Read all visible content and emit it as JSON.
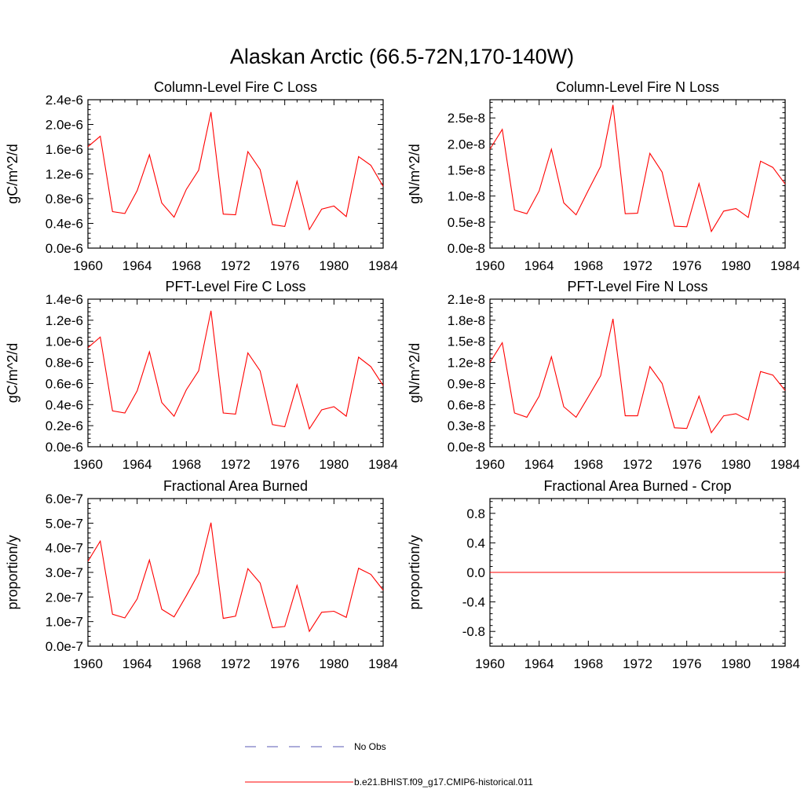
{
  "figure": {
    "title": "Alaskan Arctic (66.5-72N,170-140W)"
  },
  "legend": {
    "entries": [
      {
        "label": "No Obs",
        "color": "#5a5ab4",
        "dash": true
      },
      {
        "label": "b.e21.BHIST.f09_g17.CMIP6-historical.011",
        "color": "#ff0000",
        "dash": false
      }
    ]
  },
  "chart_data": [
    {
      "type": "line",
      "title": "Column-Level Fire C Loss",
      "ylabel": "gC/m^2/d",
      "xlim": [
        1960,
        1984
      ],
      "ylim": [
        0,
        2.4e-06
      ],
      "xticks": [
        "1960",
        "1964",
        "1968",
        "1972",
        "1976",
        "1980",
        "1984"
      ],
      "yticks": [
        "0.0e-6",
        "0.4e-6",
        "0.8e-6",
        "1.2e-6",
        "1.6e-6",
        "2.0e-6",
        "2.4e-6"
      ],
      "series": [
        {
          "name": "b.e21.BHIST.f09_g17.CMIP6-historical.011",
          "color": "#ff0000",
          "x": [
            1960,
            1961,
            1962,
            1963,
            1964,
            1965,
            1966,
            1967,
            1968,
            1969,
            1970,
            1971,
            1972,
            1973,
            1974,
            1975,
            1976,
            1977,
            1978,
            1979,
            1980,
            1981,
            1982,
            1983,
            1984
          ],
          "y": [
            1.64e-06,
            1.81e-06,
            5.9e-07,
            5.6e-07,
            9.3e-07,
            1.51e-06,
            7.3e-07,
            5e-07,
            9.5e-07,
            1.26e-06,
            2.2e-06,
            5.5e-07,
            5.4e-07,
            1.56e-06,
            1.27e-06,
            3.8e-07,
            3.5e-07,
            1.08e-06,
            3e-07,
            6.3e-07,
            6.8e-07,
            5.1e-07,
            1.48e-06,
            1.34e-06,
            1e-06
          ]
        }
      ]
    },
    {
      "type": "line",
      "title": "Column-Level Fire N Loss",
      "ylabel": "gN/m^2/d",
      "xlim": [
        1960,
        1984
      ],
      "ylim": [
        0,
        2.85e-08
      ],
      "xticks": [
        "1960",
        "1964",
        "1968",
        "1972",
        "1976",
        "1980",
        "1984"
      ],
      "yticks": [
        "0.0e-8",
        "0.5e-8",
        "1.0e-8",
        "1.5e-8",
        "2.0e-8",
        "2.5e-8"
      ],
      "series": [
        {
          "name": "b.e21.BHIST.f09_g17.CMIP6-historical.011",
          "color": "#ff0000",
          "x": [
            1960,
            1961,
            1962,
            1963,
            1964,
            1965,
            1966,
            1967,
            1968,
            1969,
            1970,
            1971,
            1972,
            1973,
            1974,
            1975,
            1976,
            1977,
            1978,
            1979,
            1980,
            1981,
            1982,
            1983,
            1984
          ],
          "y": [
            1.9e-08,
            2.28e-08,
            7.3e-09,
            6.6e-09,
            1.1e-08,
            1.9e-08,
            8.7e-09,
            6.4e-09,
            1.11e-08,
            1.57e-08,
            2.75e-08,
            6.6e-09,
            6.7e-09,
            1.82e-08,
            1.46e-08,
            4.2e-09,
            4.1e-09,
            1.24e-08,
            3.2e-09,
            7.1e-09,
            7.6e-09,
            5.9e-09,
            1.67e-08,
            1.55e-08,
            1.23e-08
          ]
        }
      ]
    },
    {
      "type": "line",
      "title": "PFT-Level Fire C Loss",
      "ylabel": "gC/m^2/d",
      "xlim": [
        1960,
        1984
      ],
      "ylim": [
        0,
        1.4e-06
      ],
      "xticks": [
        "1960",
        "1964",
        "1968",
        "1972",
        "1976",
        "1980",
        "1984"
      ],
      "yticks": [
        "0.0e-6",
        "0.2e-6",
        "0.4e-6",
        "0.6e-6",
        "0.8e-6",
        "1.0e-6",
        "1.2e-6",
        "1.4e-6"
      ],
      "series": [
        {
          "name": "b.e21.BHIST.f09_g17.CMIP6-historical.011",
          "color": "#ff0000",
          "x": [
            1960,
            1961,
            1962,
            1963,
            1964,
            1965,
            1966,
            1967,
            1968,
            1969,
            1970,
            1971,
            1972,
            1973,
            1974,
            1975,
            1976,
            1977,
            1978,
            1979,
            1980,
            1981,
            1982,
            1983,
            1984
          ],
          "y": [
            9.4e-07,
            1.04e-06,
            3.4e-07,
            3.2e-07,
            5.3e-07,
            9e-07,
            4.2e-07,
            2.9e-07,
            5.4e-07,
            7.2e-07,
            1.29e-06,
            3.2e-07,
            3.1e-07,
            8.9e-07,
            7.2e-07,
            2.1e-07,
            1.9e-07,
            5.9e-07,
            1.7e-07,
            3.5e-07,
            3.8e-07,
            2.9e-07,
            8.5e-07,
            7.6e-07,
            5.8e-07
          ]
        }
      ]
    },
    {
      "type": "line",
      "title": "PFT-Level Fire N Loss",
      "ylabel": "gN/m^2/d",
      "xlim": [
        1960,
        1984
      ],
      "ylim": [
        0,
        2.1e-08
      ],
      "xticks": [
        "1960",
        "1964",
        "1968",
        "1972",
        "1976",
        "1980",
        "1984"
      ],
      "yticks": [
        "0.0e-8",
        "0.3e-8",
        "0.6e-8",
        "0.9e-8",
        "1.2e-8",
        "1.5e-8",
        "1.8e-8",
        "2.1e-8"
      ],
      "series": [
        {
          "name": "b.e21.BHIST.f09_g17.CMIP6-historical.011",
          "color": "#ff0000",
          "x": [
            1960,
            1961,
            1962,
            1963,
            1964,
            1965,
            1966,
            1967,
            1968,
            1969,
            1970,
            1971,
            1972,
            1973,
            1974,
            1975,
            1976,
            1977,
            1978,
            1979,
            1980,
            1981,
            1982,
            1983,
            1984
          ],
          "y": [
            1.2e-08,
            1.48e-08,
            4.8e-09,
            4.2e-09,
            7.2e-09,
            1.28e-08,
            5.7e-09,
            4.2e-09,
            7.1e-09,
            1.01e-08,
            1.82e-08,
            4.4e-09,
            4.4e-09,
            1.14e-08,
            9e-09,
            2.7e-09,
            2.6e-09,
            7.2e-09,
            2e-09,
            4.4e-09,
            4.7e-09,
            3.8e-09,
            1.07e-08,
            1.02e-08,
            8e-09
          ]
        }
      ]
    },
    {
      "type": "line",
      "title": "Fractional Area Burned",
      "ylabel": "proportion/y",
      "xlim": [
        1960,
        1984
      ],
      "ylim": [
        0,
        6e-07
      ],
      "xticks": [
        "1960",
        "1964",
        "1968",
        "1972",
        "1976",
        "1980",
        "1984"
      ],
      "yticks": [
        "0.0e-7",
        "1.0e-7",
        "2.0e-7",
        "3.0e-7",
        "4.0e-7",
        "5.0e-7",
        "6.0e-7"
      ],
      "series": [
        {
          "name": "b.e21.BHIST.f09_g17.CMIP6-historical.011",
          "color": "#ff0000",
          "x": [
            1960,
            1961,
            1962,
            1963,
            1964,
            1965,
            1966,
            1967,
            1968,
            1969,
            1970,
            1971,
            1972,
            1973,
            1974,
            1975,
            1976,
            1977,
            1978,
            1979,
            1980,
            1981,
            1982,
            1983,
            1984
          ],
          "y": [
            3.45e-07,
            4.27e-07,
            1.3e-07,
            1.15e-07,
            1.92e-07,
            3.5e-07,
            1.5e-07,
            1.19e-07,
            2.05e-07,
            2.96e-07,
            5.02e-07,
            1.13e-07,
            1.22e-07,
            3.15e-07,
            2.57e-07,
            7.5e-08,
            8e-08,
            2.47e-07,
            6e-08,
            1.38e-07,
            1.42e-07,
            1.17e-07,
            3.17e-07,
            2.92e-07,
            2.28e-07
          ]
        }
      ]
    },
    {
      "type": "line",
      "title": "Fractional Area Burned - Crop",
      "ylabel": "proportion/y",
      "xlim": [
        1960,
        1984
      ],
      "ylim": [
        -1.0,
        1.0
      ],
      "xticks": [
        "1960",
        "1964",
        "1968",
        "1972",
        "1976",
        "1980",
        "1984"
      ],
      "yticks": [
        "-0.8",
        "-0.4",
        "0.0",
        "0.4",
        "0.8"
      ],
      "series": [
        {
          "name": "b.e21.BHIST.f09_g17.CMIP6-historical.011",
          "color": "#ff0000",
          "x": [
            1960,
            1961,
            1962,
            1963,
            1964,
            1965,
            1966,
            1967,
            1968,
            1969,
            1970,
            1971,
            1972,
            1973,
            1974,
            1975,
            1976,
            1977,
            1978,
            1979,
            1980,
            1981,
            1982,
            1983,
            1984
          ],
          "y": [
            0,
            0,
            0,
            0,
            0,
            0,
            0,
            0,
            0,
            0,
            0,
            0,
            0,
            0,
            0,
            0,
            0,
            0,
            0,
            0,
            0,
            0,
            0,
            0,
            0
          ]
        }
      ]
    }
  ]
}
